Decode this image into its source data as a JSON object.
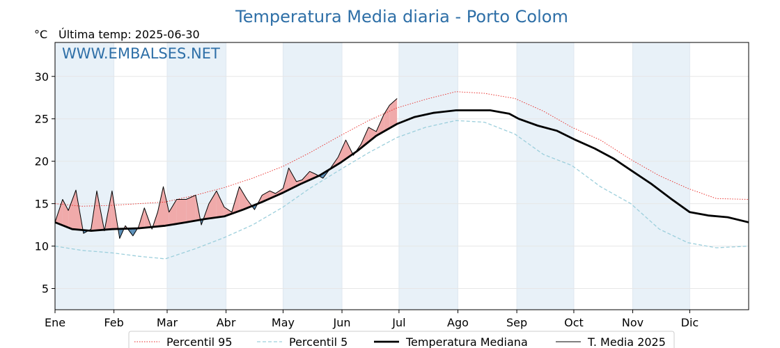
{
  "chart_data": {
    "type": "line",
    "title": "Temperatura Media diaria - Porto Colom",
    "unit_label": "°C",
    "last_temp_label": "Última temp: 2025-06-30",
    "watermark": "WWW.EMBALSES.NET",
    "ylim": [
      2.5,
      34
    ],
    "yticks": [
      5,
      10,
      15,
      20,
      25,
      30
    ],
    "xlim": [
      1,
      366
    ],
    "months": [
      {
        "label": "Ene",
        "day": 1
      },
      {
        "label": "Feb",
        "day": 32
      },
      {
        "label": "Mar",
        "day": 60
      },
      {
        "label": "Abr",
        "day": 91
      },
      {
        "label": "May",
        "day": 121
      },
      {
        "label": "Jun",
        "day": 152
      },
      {
        "label": "Jul",
        "day": 182
      },
      {
        "label": "Ago",
        "day": 213
      },
      {
        "label": "Sep",
        "day": 244
      },
      {
        "label": "Oct",
        "day": 274
      },
      {
        "label": "Nov",
        "day": 305
      },
      {
        "label": "Dic",
        "day": 335
      }
    ],
    "grid": true,
    "legend_position": "bottom-center",
    "colors": {
      "p95": "#e8231f",
      "p5": "#9ccfdc",
      "mediana": "#000000",
      "media2025": "#000000",
      "above_fill": "#f0aaaa",
      "below_fill": "#5b8fb8",
      "band_fill": "#e8f1f8",
      "title": "#2e6fa7"
    },
    "series": [
      {
        "name": "Percentil 95",
        "key": "p95",
        "style": "dotted",
        "x": [
          1,
          15,
          31,
          45,
          59,
          75,
          90,
          105,
          121,
          135,
          151,
          166,
          181,
          196,
          212,
          227,
          243,
          258,
          273,
          288,
          304,
          319,
          334,
          349,
          366
        ],
        "y": [
          15.0,
          14.7,
          14.8,
          15.0,
          15.2,
          16.0,
          16.9,
          18.0,
          19.4,
          21.0,
          23.0,
          24.8,
          26.3,
          27.3,
          28.2,
          28.0,
          27.4,
          25.9,
          24.0,
          22.5,
          20.2,
          18.3,
          16.8,
          15.6,
          15.5
        ]
      },
      {
        "name": "Percentil 5",
        "key": "p5",
        "style": "dashed",
        "x": [
          1,
          15,
          31,
          45,
          59,
          75,
          90,
          105,
          121,
          135,
          151,
          166,
          181,
          196,
          212,
          227,
          243,
          258,
          273,
          288,
          304,
          319,
          334,
          349,
          366
        ],
        "y": [
          10.0,
          9.5,
          9.2,
          8.8,
          8.5,
          9.7,
          11.0,
          12.5,
          14.6,
          16.8,
          19.0,
          21.0,
          22.8,
          24.0,
          24.8,
          24.6,
          23.2,
          20.8,
          19.5,
          17.0,
          15.0,
          12.0,
          10.4,
          9.8,
          10.0
        ]
      },
      {
        "name": "Temperatura Mediana",
        "key": "mediana",
        "style": "thick",
        "x": [
          1,
          10,
          20,
          31,
          45,
          59,
          70,
          80,
          90,
          100,
          110,
          121,
          130,
          140,
          151,
          160,
          170,
          181,
          190,
          200,
          212,
          220,
          230,
          240,
          245,
          255,
          265,
          275,
          285,
          295,
          305,
          315,
          325,
          335,
          345,
          355,
          366
        ],
        "y": [
          12.8,
          12.0,
          11.8,
          12.0,
          12.1,
          12.4,
          12.8,
          13.2,
          13.5,
          14.3,
          15.2,
          16.3,
          17.3,
          18.3,
          19.8,
          21.2,
          23.0,
          24.4,
          25.2,
          25.7,
          26.0,
          26.0,
          26.0,
          25.6,
          25.0,
          24.2,
          23.6,
          22.5,
          21.5,
          20.3,
          18.8,
          17.3,
          15.6,
          14.0,
          13.6,
          13.4,
          12.8
        ]
      },
      {
        "name": "T. Media 2025",
        "key": "media2025",
        "style": "thin",
        "x": [
          1,
          5,
          8,
          12,
          16,
          20,
          23,
          27,
          31,
          35,
          38,
          42,
          45,
          48,
          52,
          55,
          58,
          61,
          65,
          70,
          75,
          78,
          82,
          86,
          90,
          94,
          98,
          102,
          106,
          110,
          114,
          117,
          121,
          124,
          128,
          131,
          135,
          138,
          142,
          146,
          150,
          154,
          158,
          162,
          166,
          170,
          174,
          177,
          181
        ],
        "y": [
          12.8,
          15.5,
          14.2,
          16.6,
          11.5,
          12.0,
          16.5,
          11.8,
          16.5,
          10.9,
          12.4,
          11.2,
          12.3,
          14.5,
          12.0,
          14.0,
          17.0,
          14.0,
          15.5,
          15.5,
          16.0,
          12.5,
          15.0,
          16.5,
          14.6,
          14.0,
          17.0,
          15.5,
          14.3,
          16.0,
          16.5,
          16.2,
          16.8,
          19.2,
          17.6,
          17.8,
          18.8,
          18.5,
          18.0,
          19.2,
          20.5,
          22.5,
          20.7,
          22.0,
          24.0,
          23.5,
          25.5,
          26.6,
          27.4
        ]
      }
    ]
  }
}
